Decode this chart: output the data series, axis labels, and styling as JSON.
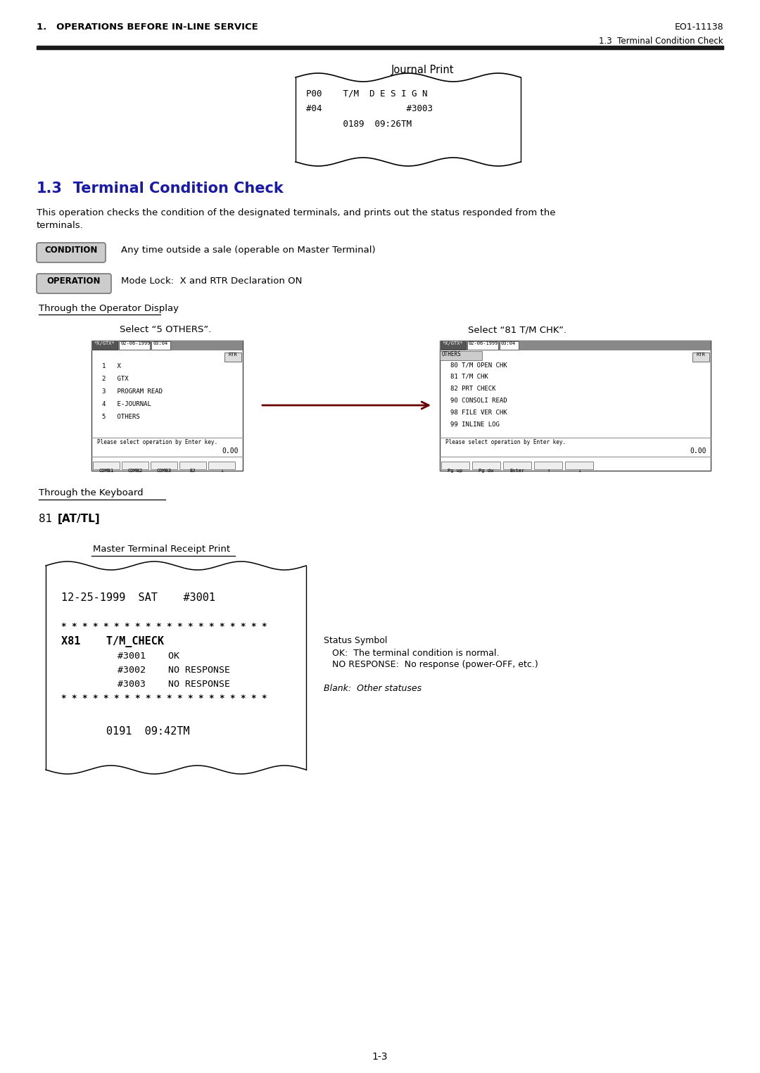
{
  "page_header_left": "1.   OPERATIONS BEFORE IN-LINE SERVICE",
  "page_header_right": "EO1-11138",
  "page_subheader_right": "1.3  Terminal Condition Check",
  "section_title_num": "1.3",
  "section_title_text": "   Terminal Condition Check",
  "journal_print_label": "Journal Print",
  "body_text1": "This operation checks the condition of the designated terminals, and prints out the status responded from the",
  "body_text2": "terminals.",
  "condition_label": "CONDITION",
  "condition_text": "Any time outside a sale (operable on Master Terminal)",
  "operation_label": "OPERATION",
  "operation_text": "Mode Lock:  X and RTR Declaration ON",
  "through_operator": "Through the Operator Display",
  "select_5others": "Select “5 OTHERS”.",
  "select_81": "Select “81 T/M CHK”.",
  "screen1_items": [
    "1   X",
    "2   GTX",
    "3   PROGRAM READ",
    "4   E-JOURNAL",
    "5   OTHERS"
  ],
  "screen1_buttons": [
    "COMB1",
    "COMB2",
    "COMB3",
    "EJ",
    "↓"
  ],
  "screen2_sub": "OTHERS",
  "screen2_items": [
    "80 T/M OPEN CHK",
    "81 T/M CHK",
    "82 PRT CHECK",
    "90 CONSOLI READ",
    "98 FILE VER CHK",
    "99 INLINE LOG"
  ],
  "screen2_buttons": [
    "Pg up",
    "Pg dw",
    "Enter",
    "↑",
    "↓"
  ],
  "through_keyboard": "Through the Keyboard",
  "master_receipt_label": "Master Terminal Receipt Print",
  "status_symbol_title": "Status Symbol",
  "status_ok": "   OK:  The terminal condition is normal.",
  "status_no": "   NO RESPONSE:  No response (power-OFF, etc.)",
  "status_blank": "Blank:  Other statuses",
  "page_number": "1-3",
  "bg_color": "#ffffff",
  "text_color": "#000000",
  "blue_color": "#1a1aaa",
  "header_bar_color": "#1a1a1a"
}
